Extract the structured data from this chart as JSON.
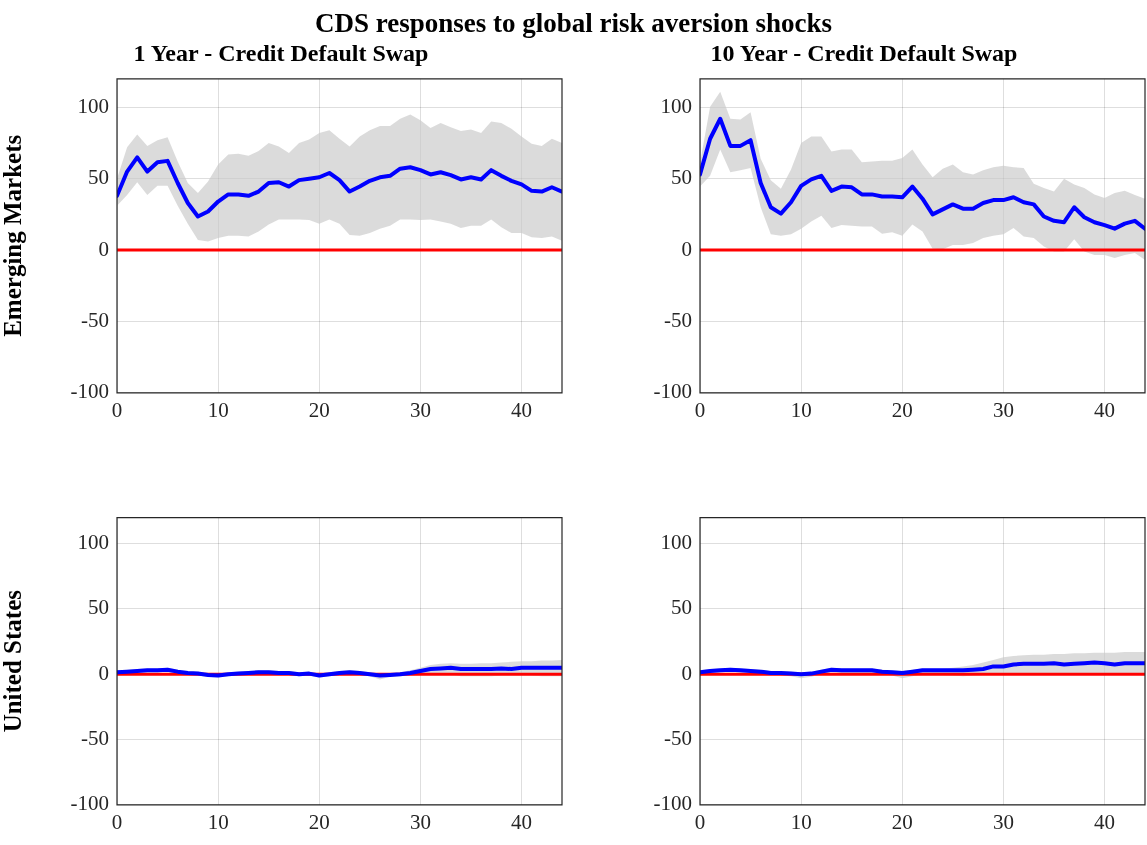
{
  "chart_data": [
    {
      "type": "line",
      "title": "1 Year - Credit Default Swap",
      "ylabel": "Emerging Markets",
      "annotations": [
        "CDS responses to global risk aversion shocks"
      ],
      "x": [
        0,
        1,
        2,
        3,
        4,
        5,
        6,
        7,
        8,
        9,
        10,
        11,
        12,
        13,
        14,
        15,
        16,
        17,
        18,
        19,
        20,
        21,
        22,
        23,
        24,
        25,
        26,
        27,
        28,
        29,
        30,
        31,
        32,
        33,
        34,
        35,
        36,
        37,
        38,
        39,
        40,
        41,
        42,
        43,
        44
      ],
      "xlim": [
        0,
        44
      ],
      "xticks": [
        0,
        10,
        20,
        30,
        40
      ],
      "ylim": [
        -100,
        120
      ],
      "yticks": [
        -100,
        -50,
        0,
        50,
        100
      ],
      "grid": true,
      "marker": "none",
      "ref_lines": [
        {
          "axis": "y",
          "value": 0,
          "color": "#ff0000"
        }
      ],
      "series": [
        {
          "color": "#0000ff",
          "values": [
            38,
            55,
            65,
            55,
            61.5,
            62.5,
            47,
            33,
            23.5,
            27,
            34,
            39,
            39,
            38,
            41,
            47,
            47.5,
            44.5,
            49,
            50,
            51,
            54,
            49,
            41,
            44.5,
            48.5,
            51,
            52,
            57,
            58,
            56,
            53,
            54.5,
            52.5,
            49.5,
            51,
            49.5,
            56,
            52,
            48.5,
            46,
            41.5,
            41,
            44,
            41
          ],
          "upper": [
            50,
            72,
            81,
            73,
            77,
            79,
            62,
            47,
            40,
            48,
            60,
            67,
            67.5,
            66,
            69.5,
            75,
            72.5,
            68,
            75,
            77.5,
            82,
            84,
            78,
            72.5,
            79.5,
            84,
            87,
            87,
            92,
            95,
            91,
            85.5,
            89,
            86,
            83.5,
            84.5,
            82,
            90,
            89,
            85,
            79.5,
            74.5,
            73,
            78,
            75
          ],
          "lower": [
            31,
            38.5,
            47.5,
            38.5,
            45,
            45,
            31,
            18.5,
            7,
            6,
            8.5,
            10,
            10,
            9.5,
            13,
            18,
            21.5,
            21.5,
            21.5,
            21,
            18.5,
            21.5,
            18.5,
            10.5,
            10,
            12,
            15,
            17,
            21.5,
            21.5,
            21,
            21.5,
            20,
            18.5,
            15.5,
            17,
            17,
            21.5,
            16,
            12,
            12,
            9,
            8.5,
            9.5,
            6.5
          ]
        }
      ]
    },
    {
      "type": "line",
      "title": "10 Year - Credit Default Swap",
      "x": [
        0,
        1,
        2,
        3,
        4,
        5,
        6,
        7,
        8,
        9,
        10,
        11,
        12,
        13,
        14,
        15,
        16,
        17,
        18,
        19,
        20,
        21,
        22,
        23,
        24,
        25,
        26,
        27,
        28,
        29,
        30,
        31,
        32,
        33,
        34,
        35,
        36,
        37,
        38,
        39,
        40,
        41,
        42,
        43,
        44
      ],
      "xlim": [
        0,
        44
      ],
      "xticks": [
        0,
        10,
        20,
        30,
        40
      ],
      "ylim": [
        -100,
        120
      ],
      "yticks": [
        -100,
        -50,
        0,
        50,
        100
      ],
      "grid": true,
      "marker": "none",
      "ref_lines": [
        {
          "axis": "y",
          "value": 0,
          "color": "#ff0000"
        }
      ],
      "series": [
        {
          "color": "#0000ff",
          "values": [
            53,
            78,
            92,
            73,
            73,
            77,
            47,
            30,
            25.5,
            33.5,
            45,
            49.5,
            52,
            41.5,
            44.5,
            44,
            39,
            39,
            37.5,
            37.5,
            37,
            44.5,
            36,
            25,
            28.5,
            32,
            29,
            29,
            33,
            35,
            35,
            37,
            33.5,
            32,
            23.5,
            20.5,
            19.5,
            30,
            23,
            19.5,
            17.5,
            15,
            18.5,
            20.5,
            15
          ],
          "upper": [
            61,
            100.5,
            111,
            92,
            91.5,
            96.5,
            64,
            49,
            43,
            56.5,
            75,
            79.5,
            79.5,
            69,
            70.5,
            70.5,
            61.5,
            62,
            62.5,
            62.5,
            64.5,
            70.5,
            60,
            51,
            57,
            60,
            54.5,
            53,
            56,
            58,
            59,
            58,
            57.5,
            46.5,
            43.5,
            41,
            50,
            46,
            43.5,
            39,
            36.5,
            40,
            41.5,
            38.5,
            36
          ],
          "lower": [
            44.5,
            52,
            70.5,
            54.5,
            56,
            57.5,
            30,
            11,
            10,
            11,
            15,
            20,
            24,
            15.5,
            17.5,
            17,
            16.5,
            16.5,
            11.5,
            12.5,
            10,
            18,
            13,
            1,
            0.5,
            3.5,
            3.5,
            5,
            8.5,
            10,
            11,
            15.5,
            9.5,
            8.5,
            2.5,
            -1,
            -1,
            7.5,
            -1,
            -3.5,
            -3.5,
            -5.5,
            -3.5,
            -2,
            -7
          ]
        }
      ]
    },
    {
      "type": "line",
      "ylabel": "United States",
      "x": [
        0,
        1,
        2,
        3,
        4,
        5,
        6,
        7,
        8,
        9,
        10,
        11,
        12,
        13,
        14,
        15,
        16,
        17,
        18,
        19,
        20,
        21,
        22,
        23,
        24,
        25,
        26,
        27,
        28,
        29,
        30,
        31,
        32,
        33,
        34,
        35,
        36,
        37,
        38,
        39,
        40,
        41,
        42,
        43,
        44
      ],
      "xlim": [
        0,
        44
      ],
      "xticks": [
        0,
        10,
        20,
        30,
        40
      ],
      "ylim": [
        -100,
        120
      ],
      "yticks": [
        -100,
        -50,
        0,
        50,
        100
      ],
      "grid": true,
      "marker": "none",
      "ref_lines": [
        {
          "axis": "y",
          "value": 0,
          "color": "#ff0000"
        }
      ],
      "series": [
        {
          "color": "#0000ff",
          "values": [
            1.5,
            2,
            2.5,
            3,
            3,
            3.5,
            2,
            1,
            0.5,
            -0.5,
            -1,
            0,
            0.5,
            1,
            1.5,
            1.5,
            1,
            1,
            0,
            0.5,
            -1,
            0,
            1,
            1.5,
            1,
            0,
            -1,
            -0.5,
            0,
            1,
            2.5,
            4,
            4.5,
            5,
            4,
            4,
            4,
            4,
            4.5,
            4,
            5,
            5,
            5,
            5,
            5
          ],
          "upper": [
            3,
            3.5,
            4,
            4.5,
            4.5,
            5,
            3.5,
            2.5,
            2,
            1,
            0.5,
            1.5,
            2,
            2.5,
            3,
            3,
            2.5,
            2.5,
            1.5,
            2,
            0.5,
            1.5,
            2.5,
            3,
            2.5,
            1.5,
            0.5,
            1,
            1.5,
            3,
            5,
            7,
            8,
            8.5,
            8,
            8,
            8.5,
            8.5,
            9,
            9.5,
            10,
            10,
            10.5,
            10.5,
            11
          ],
          "lower": [
            0,
            0.5,
            1,
            1.5,
            1.5,
            2,
            0.5,
            -0.5,
            -1,
            -2,
            -2.5,
            -1.5,
            -1,
            -0.5,
            0,
            0,
            -0.5,
            -0.5,
            -1.5,
            -1,
            -2.5,
            -1.5,
            -0.5,
            0,
            -0.5,
            -1.5,
            -4,
            -2,
            -1.5,
            -1,
            -0.5,
            0,
            0,
            0,
            -1.5,
            -1.5,
            -1.5,
            -1.5,
            -1,
            -1,
            -1,
            -1,
            -1.5,
            -1.5,
            -1.5
          ]
        }
      ]
    },
    {
      "type": "line",
      "x": [
        0,
        1,
        2,
        3,
        4,
        5,
        6,
        7,
        8,
        9,
        10,
        11,
        12,
        13,
        14,
        15,
        16,
        17,
        18,
        19,
        20,
        21,
        22,
        23,
        24,
        25,
        26,
        27,
        28,
        29,
        30,
        31,
        32,
        33,
        34,
        35,
        36,
        37,
        38,
        39,
        40,
        41,
        42,
        43,
        44
      ],
      "xlim": [
        0,
        44
      ],
      "xticks": [
        0,
        10,
        20,
        30,
        40
      ],
      "ylim": [
        -100,
        120
      ],
      "yticks": [
        -100,
        -50,
        0,
        50,
        100
      ],
      "grid": true,
      "marker": "none",
      "ref_lines": [
        {
          "axis": "y",
          "value": 0,
          "color": "#ff0000"
        }
      ],
      "series": [
        {
          "color": "#0000ff",
          "values": [
            1.5,
            2.5,
            3,
            3.5,
            3,
            2.5,
            2,
            1,
            1,
            0.5,
            0,
            0.5,
            2,
            3.5,
            3,
            3,
            3,
            3,
            2,
            1.5,
            1,
            2,
            3,
            3,
            3,
            3,
            3,
            3.5,
            4,
            6,
            6,
            7.5,
            8,
            8,
            8,
            8.5,
            7.5,
            8,
            8.5,
            9,
            8.5,
            7.5,
            8.5,
            8.5,
            8.5
          ],
          "upper": [
            3,
            4,
            4.5,
            5,
            4.5,
            4,
            3.5,
            2.5,
            2.5,
            2,
            1.5,
            2,
            3.5,
            5,
            4.5,
            4.5,
            4.5,
            4.5,
            3.5,
            3,
            2.5,
            3.5,
            4.5,
            4.5,
            4.5,
            5,
            6,
            7,
            9,
            11,
            13,
            14,
            14.5,
            15,
            15,
            15.5,
            15.5,
            16,
            16,
            16.5,
            16.5,
            16.5,
            17,
            17,
            17
          ],
          "lower": [
            0,
            1,
            1.5,
            2,
            1.5,
            1,
            0.5,
            -0.5,
            -1,
            -1.5,
            -3,
            -2,
            0,
            1.5,
            1,
            1,
            1,
            1,
            0,
            -1,
            -3,
            -1.5,
            0,
            -0.5,
            -0.5,
            -1,
            -1.5,
            -1,
            -0.5,
            0,
            0.5,
            0.5,
            0.5,
            0.5,
            0.5,
            0.5,
            0.5,
            0.5,
            0.5,
            0.5,
            0.5,
            0.5,
            0.5,
            0.5,
            0.5
          ]
        }
      ]
    }
  ]
}
